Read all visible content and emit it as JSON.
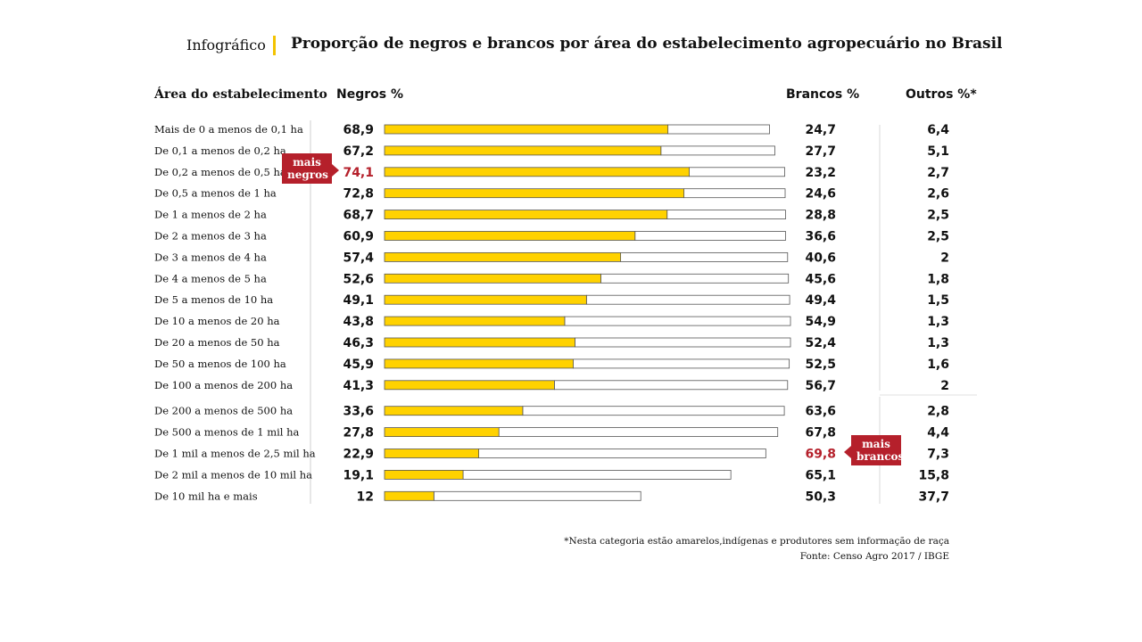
{
  "header": {
    "kicker": "Infográfico",
    "title": "Proporção de negros e brancos por área do estabelecimento agropecuário no Brasil"
  },
  "columns": {
    "area": "Área do estabelecimento",
    "negros": "Negros %",
    "brancos": "Brancos %",
    "outros": "Outros %*"
  },
  "callouts": {
    "negros": [
      "mais",
      "negros"
    ],
    "brancos": [
      "mais",
      "brancos"
    ]
  },
  "chart_data": {
    "type": "bar",
    "stacked": true,
    "title": "Proporção de negros e brancos por área do estabelecimento agropecuário no Brasil",
    "categories": [
      "Mais de 0 a menos de 0,1 ha",
      "De 0,1 a menos de 0,2 ha",
      "De 0,2 a menos de 0,5 ha",
      "De 0,5 a menos de 1 ha",
      "De 1 a menos de 2 ha",
      "De 2 a menos de 3 ha",
      "De 3 a menos de 4 ha",
      "De 4 a menos de 5 ha",
      "De 5 a menos de 10 ha",
      "De 10 a menos de 20 ha",
      "De 20 a menos de 50 ha",
      "De 50 a menos de 100 ha",
      "De 100 a menos de 200 ha",
      "De 200 a menos de 500 ha",
      "De 500 a menos de 1 mil  ha",
      "De 1 mil a menos de 2,5 mil  ha",
      "De 2 mil  a menos de 10 mil  ha",
      "De 10 mil  ha e mais"
    ],
    "series": [
      {
        "name": "Negros %",
        "color": "#ffd200",
        "labels": [
          "68,9",
          "67,2",
          "74,1",
          "72,8",
          "68,7",
          "60,9",
          "57,4",
          "52,6",
          "49,1",
          "43,8",
          "46,3",
          "45,9",
          "41,3",
          "33,6",
          "27,8",
          "22,9",
          "19,1",
          "12"
        ],
        "values": [
          68.9,
          67.2,
          74.1,
          72.8,
          68.7,
          60.9,
          57.4,
          52.6,
          49.1,
          43.8,
          46.3,
          45.9,
          41.3,
          33.6,
          27.8,
          22.9,
          19.1,
          12
        ]
      },
      {
        "name": "Brancos %",
        "color": "#ffffff",
        "labels": [
          "24,7",
          "27,7",
          "23,2",
          "24,6",
          "28,8",
          "36,6",
          "40,6",
          "45,6",
          "49,4",
          "54,9",
          "52,4",
          "52,5",
          "56,7",
          "63,6",
          "67,8",
          "69,8",
          "65,1",
          "50,3"
        ],
        "values": [
          24.7,
          27.7,
          23.2,
          24.6,
          28.8,
          36.6,
          40.6,
          45.6,
          49.4,
          54.9,
          52.4,
          52.5,
          56.7,
          63.6,
          67.8,
          69.8,
          65.1,
          50.3
        ]
      },
      {
        "name": "Outros %*",
        "labels": [
          "6,4",
          "5,1",
          "2,7",
          "2,6",
          "2,5",
          "2,5",
          "2",
          "1,8",
          "1,5",
          "1,3",
          "1,3",
          "1,6",
          "2",
          "2,8",
          "4,4",
          "7,3",
          "15,8",
          "37,7"
        ],
        "values": [
          6.4,
          5.1,
          2.7,
          2.6,
          2.5,
          2.5,
          2,
          1.8,
          1.5,
          1.3,
          1.3,
          1.6,
          2,
          2.8,
          4.4,
          7.3,
          15.8,
          37.7
        ]
      }
    ],
    "highlight": {
      "negros_index": 2,
      "brancos_index": 15,
      "color": "#b5202b"
    },
    "xlim": [
      0,
      100
    ]
  },
  "footnote": {
    "note": "*Nesta categoria estão amarelos,indígenas e produtores sem informação de raça",
    "source": "Fonte: Censo Agro 2017 / IBGE"
  }
}
